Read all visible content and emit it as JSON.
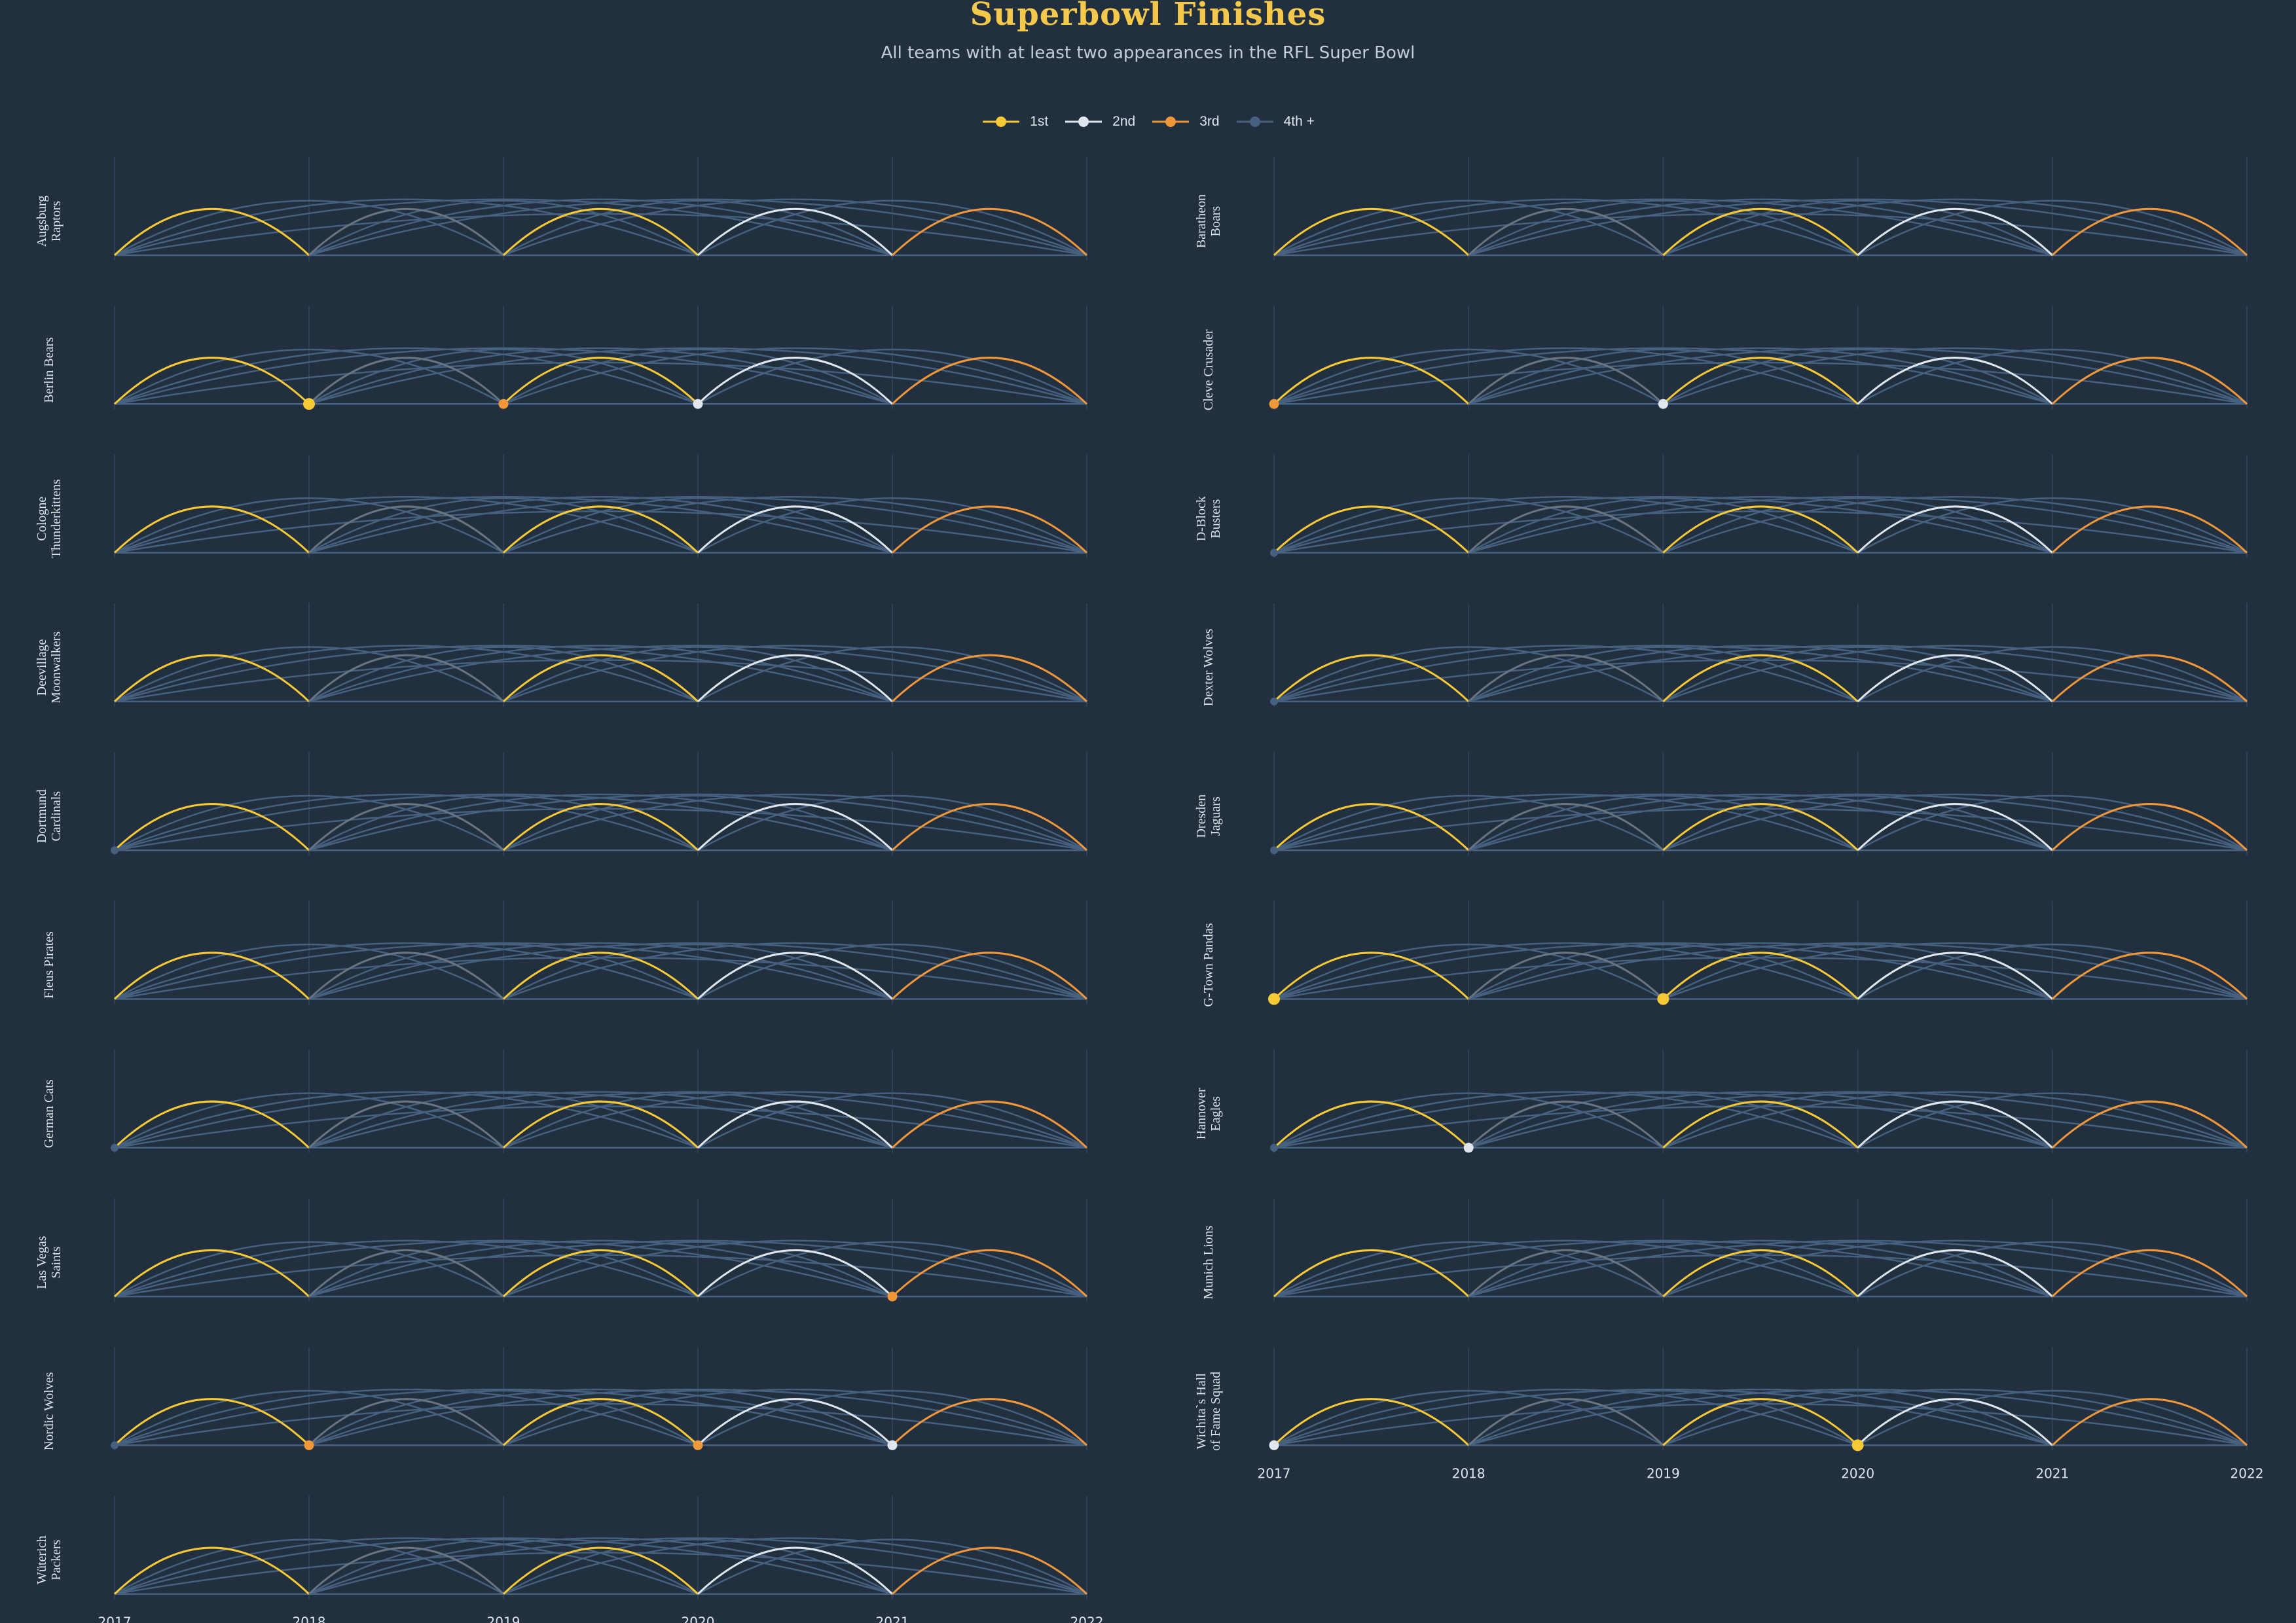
{
  "colors": {
    "background": "#222f3e",
    "title": "#f4c84a",
    "subtitle": "#c3cbd6",
    "text": "#dfe4ea",
    "axis": "#4a6282",
    "grid": "#34465e",
    "gold": "#f6c935",
    "silver": "#dfe6ee",
    "bronze": "#f0973a",
    "other": "#46607f",
    "gray_arc": "#687482"
  },
  "header": {
    "title": "Superbowl Finishes",
    "subtitle": "All teams with at least two appearances in the RFL Super Bowl"
  },
  "legend": {
    "items": [
      {
        "label": "1st",
        "color": "#f6c935",
        "icon": "dot-line-icon"
      },
      {
        "label": "2nd",
        "color": "#dfe6ee",
        "icon": "dot-line-icon"
      },
      {
        "label": "3rd",
        "color": "#f0973a",
        "icon": "dot-line-icon"
      },
      {
        "label": "4th +",
        "color": "#46607f",
        "icon": "dot-line-icon"
      }
    ]
  },
  "chart_data": {
    "type": "arc small multiples",
    "x_ticks": [
      2017,
      2018,
      2019,
      2020,
      2021,
      2022
    ],
    "xlim": [
      2017,
      2022
    ],
    "ranks": [
      "1st",
      "2nd",
      "3rd",
      "4th +"
    ],
    "background_arcs": [
      {
        "from": 2017,
        "to": 2018,
        "rank": "1st"
      },
      {
        "from": 2018,
        "to": 2019,
        "rank": "4th +"
      },
      {
        "from": 2019,
        "to": 2020,
        "rank": "1st"
      },
      {
        "from": 2020,
        "to": 2021,
        "rank": "2nd"
      },
      {
        "from": 2021,
        "to": 2022,
        "rank": "3rd"
      },
      {
        "from": 2017,
        "to": 2019,
        "rank": "4th +"
      },
      {
        "from": 2018,
        "to": 2020,
        "rank": "4th +"
      },
      {
        "from": 2019,
        "to": 2021,
        "rank": "4th +"
      },
      {
        "from": 2020,
        "to": 2022,
        "rank": "4th +"
      },
      {
        "from": 2017,
        "to": 2020,
        "rank": "4th +"
      },
      {
        "from": 2018,
        "to": 2021,
        "rank": "4th +"
      },
      {
        "from": 2019,
        "to": 2022,
        "rank": "4th +"
      },
      {
        "from": 2017,
        "to": 2021,
        "rank": "4th +"
      },
      {
        "from": 2018,
        "to": 2022,
        "rank": "4th +"
      },
      {
        "from": 2017,
        "to": 2022,
        "rank": "4th +"
      }
    ],
    "teams": [
      {
        "name": "Augsburg Raptors",
        "lines": [
          "Augsburg",
          "Raptors"
        ],
        "finishes": []
      },
      {
        "name": "Baratheon Boars",
        "lines": [
          "Baratheon",
          "Boars"
        ],
        "finishes": []
      },
      {
        "name": "Berlin Bears",
        "lines": [
          "Berlin Bears"
        ],
        "finishes": [
          {
            "year": 2018,
            "rank": "1st"
          },
          {
            "year": 2019,
            "rank": "3rd"
          },
          {
            "year": 2020,
            "rank": "2nd"
          }
        ]
      },
      {
        "name": "Cleve Crusader",
        "lines": [
          "Cleve Crusader"
        ],
        "finishes": [
          {
            "year": 2017,
            "rank": "3rd"
          },
          {
            "year": 2019,
            "rank": "2nd"
          }
        ]
      },
      {
        "name": "Cologne Thunderkittens",
        "lines": [
          "Cologne",
          "Thunderkittens"
        ],
        "finishes": []
      },
      {
        "name": "D-Block Busters",
        "lines": [
          "D-Block",
          "Busters"
        ],
        "finishes": [
          {
            "year": 2017,
            "rank": "4th +"
          }
        ]
      },
      {
        "name": "Deevillage Moonwalkers",
        "lines": [
          "Deevillage",
          "Moonwalkers"
        ],
        "finishes": []
      },
      {
        "name": "Dexter Wolves",
        "lines": [
          "Dexter Wolves"
        ],
        "finishes": [
          {
            "year": 2017,
            "rank": "4th +"
          }
        ]
      },
      {
        "name": "Dortmund Cardinals",
        "lines": [
          "Dortmund",
          "Cardinals"
        ],
        "finishes": [
          {
            "year": 2017,
            "rank": "4th +"
          }
        ]
      },
      {
        "name": "Dresden Jaguars",
        "lines": [
          "Dresden",
          "Jaguars"
        ],
        "finishes": [
          {
            "year": 2017,
            "rank": "4th +"
          }
        ]
      },
      {
        "name": "Fleus Pirates",
        "lines": [
          "Fleus Pirates"
        ],
        "finishes": []
      },
      {
        "name": "G-Town Pandas",
        "lines": [
          "G-Town Pandas"
        ],
        "finishes": [
          {
            "year": 2017,
            "rank": "1st"
          },
          {
            "year": 2019,
            "rank": "1st"
          }
        ]
      },
      {
        "name": "German Cats",
        "lines": [
          "German Cats"
        ],
        "finishes": [
          {
            "year": 2017,
            "rank": "4th +"
          }
        ]
      },
      {
        "name": "Hannover Eagles",
        "lines": [
          "Hannover",
          "Eagles"
        ],
        "finishes": [
          {
            "year": 2017,
            "rank": "4th +"
          },
          {
            "year": 2018,
            "rank": "2nd"
          }
        ]
      },
      {
        "name": "Las Vegas Saints",
        "lines": [
          "Las Vegas",
          "Saints"
        ],
        "finishes": [
          {
            "year": 2021,
            "rank": "3rd"
          }
        ]
      },
      {
        "name": "Munich Lions",
        "lines": [
          "Munich Lions"
        ],
        "finishes": []
      },
      {
        "name": "Nordic Wolves",
        "lines": [
          "Nordic Wolves"
        ],
        "finishes": [
          {
            "year": 2017,
            "rank": "4th +"
          },
          {
            "year": 2018,
            "rank": "3rd"
          },
          {
            "year": 2020,
            "rank": "3rd"
          },
          {
            "year": 2021,
            "rank": "2nd"
          }
        ]
      },
      {
        "name": "Wichita's Hall of Fame Squad",
        "lines": [
          "Wichita`s Hall",
          "of Fame Squad"
        ],
        "finishes": [
          {
            "year": 2017,
            "rank": "2nd"
          },
          {
            "year": 2020,
            "rank": "1st"
          }
        ]
      },
      {
        "name": "Wuterich Packers",
        "lines": [
          "Wüterich",
          "Packers"
        ],
        "finishes": []
      }
    ]
  }
}
